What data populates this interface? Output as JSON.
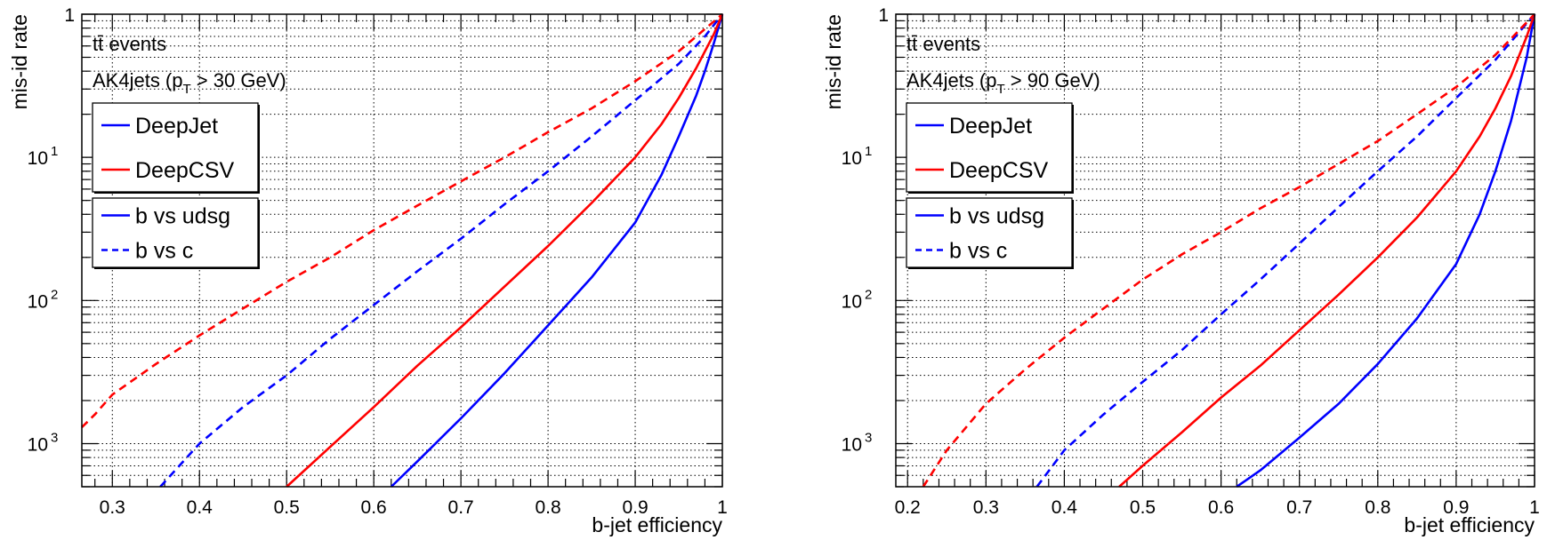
{
  "chart_data": [
    {
      "type": "line",
      "xlabel": "b-jet efficiency",
      "ylabel": "mis-id rate",
      "xlim": [
        0.265,
        1.0
      ],
      "ylim": [
        0.0005,
        1
      ],
      "xscale": "linear",
      "yscale": "log",
      "grid": true,
      "xticks": [
        0.3,
        0.4,
        0.5,
        0.6,
        0.7,
        0.8,
        0.9,
        1
      ],
      "xtick_labels": [
        "0.3",
        "0.4",
        "0.5",
        "0.6",
        "0.7",
        "0.8",
        "0.9",
        "1"
      ],
      "ytick_labels": [
        {
          "value": 1,
          "base": "1",
          "exp": ""
        },
        {
          "value": 0.1,
          "base": "10",
          "exp": "1"
        },
        {
          "value": 0.01,
          "base": "10",
          "exp": "2"
        },
        {
          "value": 0.001,
          "base": "10",
          "exp": "3"
        }
      ],
      "annotations": [
        {
          "text": "tt̄ events"
        },
        {
          "text": "AK4jets (p",
          "sub": "T",
          "rest": " > 30 GeV)"
        }
      ],
      "legend_taggers": [
        {
          "label": "DeepJet",
          "color": "#0000ff",
          "style": "solid"
        },
        {
          "label": "DeepCSV",
          "color": "#ff0000",
          "style": "solid"
        }
      ],
      "legend_styles": [
        {
          "label": "b vs udsg",
          "color": "#0000ff",
          "style": "solid"
        },
        {
          "label": "b vs c",
          "color": "#0000ff",
          "style": "dashed"
        }
      ],
      "series": [
        {
          "color": "#0000ff",
          "style": "solid",
          "x": [
            0.62,
            0.65,
            0.7,
            0.75,
            0.8,
            0.85,
            0.9,
            0.93,
            0.95,
            0.97,
            0.98,
            0.99,
            1.0
          ],
          "y": [
            0.0005,
            0.00075,
            0.0015,
            0.0031,
            0.0067,
            0.0145,
            0.035,
            0.075,
            0.14,
            0.27,
            0.4,
            0.62,
            1.0
          ]
        },
        {
          "color": "#ff0000",
          "style": "solid",
          "x": [
            0.5,
            0.55,
            0.6,
            0.65,
            0.7,
            0.75,
            0.8,
            0.85,
            0.9,
            0.93,
            0.95,
            0.97,
            0.99,
            1.0
          ],
          "y": [
            0.0005,
            0.00095,
            0.0018,
            0.0035,
            0.0065,
            0.0125,
            0.024,
            0.048,
            0.1,
            0.17,
            0.26,
            0.42,
            0.72,
            1.0
          ]
        },
        {
          "color": "#0000ff",
          "style": "dashed",
          "x": [
            0.355,
            0.4,
            0.45,
            0.5,
            0.55,
            0.6,
            0.65,
            0.7,
            0.75,
            0.8,
            0.85,
            0.9,
            0.95,
            0.98,
            1.0
          ],
          "y": [
            0.0005,
            0.001,
            0.0018,
            0.003,
            0.0054,
            0.0093,
            0.016,
            0.027,
            0.047,
            0.08,
            0.14,
            0.25,
            0.45,
            0.7,
            1.0
          ]
        },
        {
          "color": "#ff0000",
          "style": "dashed",
          "x": [
            0.265,
            0.28,
            0.3,
            0.35,
            0.4,
            0.45,
            0.5,
            0.55,
            0.6,
            0.65,
            0.7,
            0.75,
            0.8,
            0.85,
            0.9,
            0.95,
            1.0
          ],
          "y": [
            0.0013,
            0.0016,
            0.0022,
            0.0036,
            0.0057,
            0.0088,
            0.0135,
            0.02,
            0.031,
            0.046,
            0.068,
            0.1,
            0.15,
            0.22,
            0.34,
            0.55,
            1.0
          ]
        }
      ]
    },
    {
      "type": "line",
      "xlabel": "b-jet efficiency",
      "ylabel": "mis-id rate",
      "xlim": [
        0.185,
        1.0
      ],
      "ylim": [
        0.0005,
        1
      ],
      "xscale": "linear",
      "yscale": "log",
      "grid": true,
      "xticks": [
        0.2,
        0.3,
        0.4,
        0.5,
        0.6,
        0.7,
        0.8,
        0.9,
        1
      ],
      "xtick_labels": [
        "0.2",
        "0.3",
        "0.4",
        "0.5",
        "0.6",
        "0.7",
        "0.8",
        "0.9",
        "1"
      ],
      "ytick_labels": [
        {
          "value": 1,
          "base": "1",
          "exp": ""
        },
        {
          "value": 0.1,
          "base": "10",
          "exp": "1"
        },
        {
          "value": 0.01,
          "base": "10",
          "exp": "2"
        },
        {
          "value": 0.001,
          "base": "10",
          "exp": "3"
        }
      ],
      "annotations": [
        {
          "text": "tt̄ events"
        },
        {
          "text": "AK4jets (p",
          "sub": "T",
          "rest": " > 90 GeV)"
        }
      ],
      "legend_taggers": [
        {
          "label": "DeepJet",
          "color": "#0000ff",
          "style": "solid"
        },
        {
          "label": "DeepCSV",
          "color": "#ff0000",
          "style": "solid"
        }
      ],
      "legend_styles": [
        {
          "label": "b vs udsg",
          "color": "#0000ff",
          "style": "solid"
        },
        {
          "label": "b vs c",
          "color": "#0000ff",
          "style": "dashed"
        }
      ],
      "series": [
        {
          "color": "#0000ff",
          "style": "solid",
          "x": [
            0.62,
            0.65,
            0.7,
            0.75,
            0.8,
            0.85,
            0.9,
            0.93,
            0.95,
            0.97,
            0.99,
            1.0
          ],
          "y": [
            0.0005,
            0.00065,
            0.0011,
            0.0019,
            0.0036,
            0.0075,
            0.018,
            0.04,
            0.08,
            0.18,
            0.5,
            1.0
          ]
        },
        {
          "color": "#ff0000",
          "style": "solid",
          "x": [
            0.47,
            0.5,
            0.55,
            0.6,
            0.65,
            0.7,
            0.75,
            0.8,
            0.85,
            0.9,
            0.93,
            0.95,
            0.97,
            0.99,
            1.0
          ],
          "y": [
            0.0005,
            0.0007,
            0.0012,
            0.0021,
            0.0035,
            0.0062,
            0.011,
            0.02,
            0.038,
            0.08,
            0.14,
            0.22,
            0.37,
            0.7,
            1.0
          ]
        },
        {
          "color": "#0000ff",
          "style": "dashed",
          "x": [
            0.365,
            0.4,
            0.45,
            0.5,
            0.55,
            0.6,
            0.65,
            0.7,
            0.75,
            0.8,
            0.85,
            0.9,
            0.95,
            1.0
          ],
          "y": [
            0.0005,
            0.0009,
            0.0016,
            0.0027,
            0.0045,
            0.008,
            0.014,
            0.025,
            0.045,
            0.08,
            0.14,
            0.26,
            0.48,
            1.0
          ]
        },
        {
          "color": "#ff0000",
          "style": "dashed",
          "x": [
            0.22,
            0.25,
            0.3,
            0.35,
            0.4,
            0.45,
            0.5,
            0.55,
            0.6,
            0.65,
            0.7,
            0.75,
            0.8,
            0.85,
            0.9,
            0.95,
            1.0
          ],
          "y": [
            0.0005,
            0.0009,
            0.0019,
            0.0033,
            0.0055,
            0.0088,
            0.014,
            0.021,
            0.03,
            0.044,
            0.062,
            0.09,
            0.13,
            0.2,
            0.31,
            0.52,
            1.0
          ]
        }
      ]
    }
  ]
}
